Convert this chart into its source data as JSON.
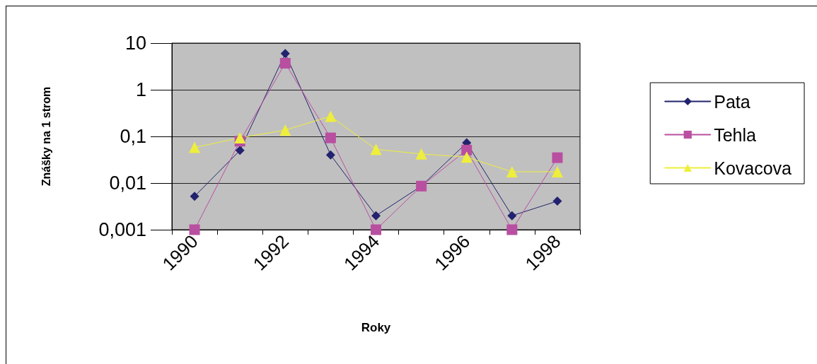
{
  "chart_data": {
    "type": "line",
    "xlabel": "Roky",
    "ylabel": "Znášky na 1 strom",
    "categories": [
      "1990",
      null,
      "1992",
      null,
      "1994",
      null,
      "1996",
      null,
      "1998"
    ],
    "series": [
      {
        "name": "Pata",
        "color": "#22226e",
        "marker": "diamond",
        "values": [
          0.0052,
          0.05,
          6.0,
          0.04,
          0.002,
          0.0086,
          0.073,
          0.002,
          0.0041
        ]
      },
      {
        "name": "Tehla",
        "color": "#b94fa0",
        "marker": "square",
        "values": [
          0.001,
          0.079,
          3.7,
          0.093,
          0.001,
          0.0086,
          0.051,
          0.001,
          0.035
        ]
      },
      {
        "name": "Kovacova",
        "color": "#eeee3c",
        "marker": "triangle",
        "values": [
          0.058,
          0.093,
          0.137,
          0.27,
          0.053,
          0.042,
          0.036,
          0.0175,
          0.0175
        ]
      }
    ],
    "log": "y",
    "ylim": [
      0.001,
      10
    ],
    "yticks": [
      {
        "value": 0.001,
        "label": "0,001"
      },
      {
        "value": 0.01,
        "label": "0,01"
      },
      {
        "value": 0.1,
        "label": "0,1"
      },
      {
        "value": 1,
        "label": "1"
      },
      {
        "value": 10,
        "label": "10"
      }
    ],
    "grid": "y",
    "legend": "right",
    "line_style": "solid"
  }
}
